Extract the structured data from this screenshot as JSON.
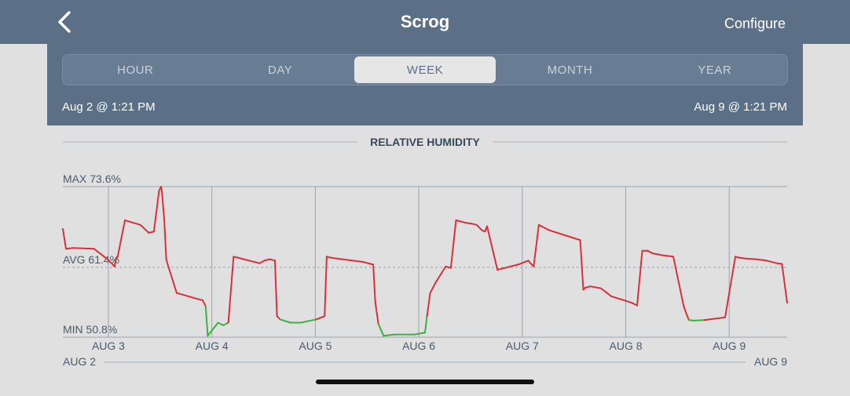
{
  "header": {
    "title": "Scrog",
    "back_icon": "chevron-left-icon",
    "configure_label": "Configure"
  },
  "tabs": [
    {
      "label": "HOUR",
      "active": false
    },
    {
      "label": "DAY",
      "active": false
    },
    {
      "label": "WEEK",
      "active": true
    },
    {
      "label": "MONTH",
      "active": false
    },
    {
      "label": "YEAR",
      "active": false
    }
  ],
  "range": {
    "start": "Aug 2 @ 1:21 PM",
    "end": "Aug 9 @ 1:21 PM"
  },
  "colors": {
    "accent": "#5b6f86",
    "line_high": "#d9303a",
    "line_low": "#3cb043",
    "text_dark": "#34495e"
  },
  "chart_data": {
    "type": "line",
    "title": "RELATIVE HUMIDITY",
    "max_label": "MAX 73.6%",
    "avg_label": "AVG 61.4%",
    "min_label": "MIN 50.8%",
    "max": 73.6,
    "avg": 61.4,
    "min": 50.8,
    "unit": "%",
    "x_ticks": [
      "AUG 3",
      "AUG 4",
      "AUG 5",
      "AUG 6",
      "AUG 7",
      "AUG 8",
      "AUG 9"
    ],
    "x_start_label": "AUG 2",
    "x_end_label": "AUG 9",
    "low_threshold": 53.5,
    "series": [
      {
        "x": [
          0,
          0.03,
          0.1,
          0.3,
          0.4,
          0.44,
          0.5,
          0.51,
          0.53,
          0.6,
          0.75,
          0.83,
          0.88,
          0.93,
          0.95,
          0.96,
          0.98,
          1.0,
          1.1,
          1.3,
          1.35,
          1.38,
          1.4,
          1.5,
          1.55,
          1.6,
          1.65,
          1.7,
          1.75,
          1.8,
          1.85,
          1.9,
          1.95,
          2.0,
          2.05,
          2.07,
          2.1,
          2.2,
          2.3,
          2.45,
          2.5,
          2.53,
          2.55,
          2.6,
          2.7,
          2.9,
          3.0,
          3.02,
          3.05,
          3.1,
          3.2,
          3.4,
          3.5,
          3.52,
          3.55,
          3.6,
          3.7,
          3.75,
          3.8,
          3.85,
          3.9,
          3.95,
          4.0,
          4.05,
          4.08,
          4.1,
          4.2,
          4.4,
          4.5,
          4.52,
          4.55,
          4.6,
          4.7,
          4.9,
          5.0,
          5.03,
          5.05,
          5.1,
          5.2,
          5.3,
          5.4,
          5.5,
          5.55,
          5.6,
          5.65,
          5.7,
          5.8,
          5.9,
          6.0,
          6.03,
          6.05,
          6.1,
          6.2,
          6.4,
          6.5,
          6.52,
          6.55,
          6.6,
          6.7,
          6.8,
          6.9,
          6.95,
          7.0
        ],
        "y": [
          67.2,
          64.2,
          64.3,
          64.2,
          63.0,
          62.5,
          61.5,
          62.5,
          63.0,
          68.5,
          67.8,
          66.6,
          66.8,
          73.0,
          73.6,
          72.5,
          68.5,
          62.5,
          57.5,
          56.6,
          56.4,
          55.5,
          51.0,
          53.0,
          52.6,
          53.0,
          63.0,
          62.8,
          62.6,
          62.4,
          62.2,
          62.0,
          62.4,
          62.6,
          62.4,
          54.0,
          53.5,
          53.0,
          53.0,
          53.5,
          53.8,
          54.0,
          63.0,
          62.8,
          62.6,
          62.2,
          61.8,
          56.0,
          52.8,
          51.0,
          51.2,
          51.2,
          51.5,
          54.0,
          57.5,
          59.0,
          61.5,
          61.3,
          68.5,
          68.3,
          68.1,
          68.0,
          67.8,
          67.0,
          66.8,
          67.6,
          61.0,
          61.8,
          62.4,
          62.0,
          61.5,
          67.8,
          67.0,
          66.0,
          65.5,
          58.0,
          58.3,
          58.5,
          58.2,
          57.0,
          56.5,
          56.0,
          55.6,
          63.9,
          63.9,
          63.5,
          63.2,
          63.0,
          55.5,
          54.2,
          53.4,
          53.3,
          53.4,
          53.8,
          63.0,
          62.9,
          62.8,
          62.7,
          62.6,
          62.4,
          62.0,
          61.9,
          56.0
        ]
      }
    ]
  }
}
